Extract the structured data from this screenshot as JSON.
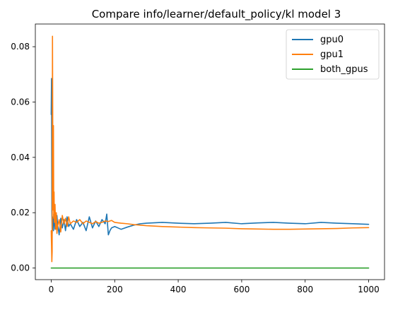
{
  "chart_data": {
    "type": "line",
    "title": "Compare info/learner/default_policy/kl model 3",
    "xlabel": "",
    "ylabel": "",
    "xlim": [
      -50,
      1050
    ],
    "ylim": [
      -0.0042,
      0.0882
    ],
    "x_ticks": [
      0,
      200,
      400,
      600,
      800,
      1000
    ],
    "x_tick_labels": [
      "0",
      "200",
      "400",
      "600",
      "800",
      "1000"
    ],
    "y_ticks": [
      0.0,
      0.02,
      0.04,
      0.06,
      0.08
    ],
    "y_tick_labels": [
      "0.00",
      "0.02",
      "0.04",
      "0.06",
      "0.08"
    ],
    "grid": false,
    "legend_position": "top-right",
    "series": [
      {
        "name": "gpu0",
        "color": "#1f77b4",
        "x": [
          0,
          1,
          2,
          3,
          4,
          5,
          6,
          7,
          8,
          9,
          10,
          12,
          14,
          16,
          18,
          20,
          25,
          30,
          35,
          40,
          45,
          50,
          55,
          60,
          70,
          80,
          90,
          100,
          110,
          120,
          130,
          140,
          150,
          160,
          170,
          175,
          180,
          185,
          190,
          200,
          220,
          240,
          260,
          280,
          300,
          350,
          400,
          450,
          500,
          550,
          600,
          650,
          700,
          750,
          800,
          850,
          900,
          950,
          1000
        ],
        "y": [
          0.0555,
          0.0685,
          0.0205,
          0.0125,
          0.0185,
          0.0145,
          0.0175,
          0.0135,
          0.0195,
          0.0155,
          0.0165,
          0.014,
          0.0175,
          0.015,
          0.019,
          0.016,
          0.012,
          0.018,
          0.0145,
          0.0175,
          0.0135,
          0.0185,
          0.015,
          0.016,
          0.014,
          0.0175,
          0.015,
          0.0165,
          0.0135,
          0.0185,
          0.0145,
          0.017,
          0.015,
          0.0175,
          0.016,
          0.0195,
          0.012,
          0.0135,
          0.0145,
          0.015,
          0.014,
          0.0148,
          0.0155,
          0.016,
          0.0162,
          0.0165,
          0.0162,
          0.016,
          0.0162,
          0.0165,
          0.016,
          0.0163,
          0.0165,
          0.0162,
          0.016,
          0.0165,
          0.0162,
          0.016,
          0.0158
        ]
      },
      {
        "name": "gpu1",
        "color": "#ff7f0e",
        "x": [
          0,
          1,
          2,
          3,
          4,
          5,
          6,
          7,
          8,
          9,
          10,
          12,
          14,
          16,
          18,
          20,
          25,
          30,
          35,
          40,
          45,
          50,
          55,
          60,
          70,
          80,
          90,
          100,
          110,
          120,
          130,
          140,
          150,
          160,
          170,
          180,
          190,
          200,
          220,
          240,
          260,
          280,
          300,
          350,
          400,
          450,
          500,
          550,
          600,
          650,
          700,
          750,
          800,
          850,
          900,
          950,
          1000
        ],
        "y": [
          0.0135,
          0.008,
          0.0023,
          0.006,
          0.0838,
          0.045,
          0.021,
          0.0515,
          0.018,
          0.0275,
          0.0165,
          0.023,
          0.014,
          0.02,
          0.0125,
          0.015,
          0.0175,
          0.013,
          0.019,
          0.016,
          0.018,
          0.015,
          0.0185,
          0.016,
          0.017,
          0.0165,
          0.0175,
          0.016,
          0.017,
          0.0165,
          0.016,
          0.0168,
          0.0162,
          0.0165,
          0.017,
          0.0168,
          0.0172,
          0.0165,
          0.0162,
          0.016,
          0.0157,
          0.0155,
          0.0153,
          0.015,
          0.0148,
          0.0146,
          0.0145,
          0.0144,
          0.0142,
          0.0141,
          0.014,
          0.014,
          0.0141,
          0.0142,
          0.0143,
          0.0145,
          0.0146
        ]
      },
      {
        "name": "both_gpus",
        "color": "#2ca02c",
        "x": [
          0,
          1000
        ],
        "y": [
          0.0,
          0.0
        ]
      }
    ]
  }
}
